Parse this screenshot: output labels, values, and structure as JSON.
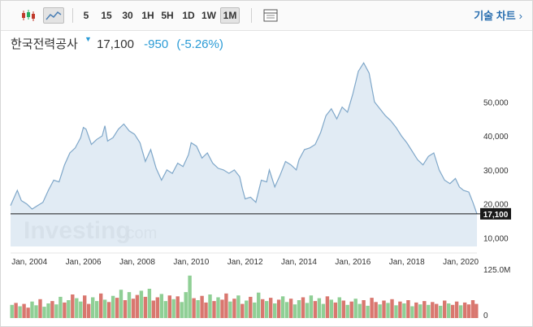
{
  "toolbar": {
    "candle_icon": "candlestick-icon",
    "area_icon": "area-chart-icon",
    "ranges": [
      "5",
      "15",
      "30",
      "1H",
      "5H",
      "1D",
      "1W",
      "1M"
    ],
    "selected_range": "1M",
    "table_icon": "table-view-icon",
    "tech_chart_label": "기술 차트",
    "tech_chart_arrow": "›"
  },
  "header": {
    "name": "한국전력공사",
    "price": "17,100",
    "change": "-950",
    "change_pct": "(-5.26%)",
    "down_color": "#2a9bd6"
  },
  "watermark": {
    "brand": "Investing",
    "suffix": ".com"
  },
  "chart_data": {
    "type": "area",
    "x_tick_labels": [
      "Jan, 2004",
      "Jan, 2006",
      "Jan, 2008",
      "Jan, 2010",
      "Jan, 2012",
      "Jan, 2014",
      "Jan, 2016",
      "Jan, 2018",
      "Jan, 2020"
    ],
    "y_tick_labels": [
      "50,000",
      "40,000",
      "30,000",
      "20,000",
      "10,000"
    ],
    "y_ticks": [
      50000,
      40000,
      30000,
      20000,
      10000
    ],
    "xlim": [
      2003.3,
      2020.6
    ],
    "ylim": [
      7500,
      63000
    ],
    "last_price_label": "17,100",
    "last_price": 17100,
    "series": [
      {
        "points": [
          [
            2003.3,
            19500
          ],
          [
            2003.55,
            24000
          ],
          [
            2003.7,
            21000
          ],
          [
            2003.9,
            20000
          ],
          [
            2004.1,
            18500
          ],
          [
            2004.3,
            19500
          ],
          [
            2004.5,
            20500
          ],
          [
            2004.7,
            24000
          ],
          [
            2004.9,
            27000
          ],
          [
            2005.1,
            26500
          ],
          [
            2005.3,
            31500
          ],
          [
            2005.5,
            35000
          ],
          [
            2005.7,
            36500
          ],
          [
            2005.9,
            39500
          ],
          [
            2006.0,
            42500
          ],
          [
            2006.1,
            42000
          ],
          [
            2006.3,
            37500
          ],
          [
            2006.5,
            39000
          ],
          [
            2006.7,
            40000
          ],
          [
            2006.8,
            43000
          ],
          [
            2006.9,
            38500
          ],
          [
            2007.1,
            39500
          ],
          [
            2007.3,
            42000
          ],
          [
            2007.5,
            43500
          ],
          [
            2007.7,
            41500
          ],
          [
            2007.9,
            40500
          ],
          [
            2008.1,
            38000
          ],
          [
            2008.3,
            32500
          ],
          [
            2008.5,
            36000
          ],
          [
            2008.7,
            30500
          ],
          [
            2008.9,
            27000
          ],
          [
            2009.1,
            30000
          ],
          [
            2009.3,
            29000
          ],
          [
            2009.5,
            32000
          ],
          [
            2009.7,
            31000
          ],
          [
            2009.9,
            34500
          ],
          [
            2010.0,
            38000
          ],
          [
            2010.2,
            37000
          ],
          [
            2010.4,
            33500
          ],
          [
            2010.6,
            35000
          ],
          [
            2010.8,
            32000
          ],
          [
            2011.0,
            30500
          ],
          [
            2011.2,
            30000
          ],
          [
            2011.4,
            29000
          ],
          [
            2011.6,
            30000
          ],
          [
            2011.8,
            28000
          ],
          [
            2011.9,
            24500
          ],
          [
            2012.0,
            21500
          ],
          [
            2012.2,
            22000
          ],
          [
            2012.4,
            20500
          ],
          [
            2012.6,
            27000
          ],
          [
            2012.8,
            26500
          ],
          [
            2012.9,
            30000
          ],
          [
            2013.1,
            25000
          ],
          [
            2013.3,
            28500
          ],
          [
            2013.5,
            32500
          ],
          [
            2013.7,
            31500
          ],
          [
            2013.9,
            30000
          ],
          [
            2014.0,
            33000
          ],
          [
            2014.2,
            36000
          ],
          [
            2014.4,
            36500
          ],
          [
            2014.6,
            37500
          ],
          [
            2014.8,
            41000
          ],
          [
            2015.0,
            46000
          ],
          [
            2015.2,
            48000
          ],
          [
            2015.4,
            45000
          ],
          [
            2015.6,
            48500
          ],
          [
            2015.8,
            47000
          ],
          [
            2016.0,
            52500
          ],
          [
            2016.2,
            59000
          ],
          [
            2016.4,
            61500
          ],
          [
            2016.6,
            58500
          ],
          [
            2016.8,
            50000
          ],
          [
            2017.0,
            48000
          ],
          [
            2017.2,
            46000
          ],
          [
            2017.4,
            44500
          ],
          [
            2017.6,
            42500
          ],
          [
            2017.8,
            40000
          ],
          [
            2018.0,
            38000
          ],
          [
            2018.2,
            35500
          ],
          [
            2018.4,
            33000
          ],
          [
            2018.6,
            31500
          ],
          [
            2018.8,
            34000
          ],
          [
            2019.0,
            35000
          ],
          [
            2019.2,
            30000
          ],
          [
            2019.4,
            27000
          ],
          [
            2019.6,
            26000
          ],
          [
            2019.8,
            27500
          ],
          [
            2019.95,
            25000
          ],
          [
            2020.1,
            24000
          ],
          [
            2020.3,
            23500
          ],
          [
            2020.45,
            20500
          ],
          [
            2020.6,
            17100
          ]
        ]
      }
    ],
    "volume": {
      "y_tick_labels": [
        "125.0M",
        "0"
      ],
      "ylim": [
        0,
        125000000
      ],
      "bars": [
        [
          2003.35,
          28,
          "g"
        ],
        [
          2003.5,
          32,
          "r"
        ],
        [
          2003.65,
          25,
          "g"
        ],
        [
          2003.8,
          30,
          "r"
        ],
        [
          2003.95,
          22,
          "r"
        ],
        [
          2004.1,
          35,
          "g"
        ],
        [
          2004.25,
          27,
          "g"
        ],
        [
          2004.4,
          40,
          "r"
        ],
        [
          2004.55,
          24,
          "g"
        ],
        [
          2004.7,
          31,
          "g"
        ],
        [
          2004.85,
          36,
          "r"
        ],
        [
          2005.0,
          29,
          "g"
        ],
        [
          2005.15,
          45,
          "g"
        ],
        [
          2005.3,
          33,
          "r"
        ],
        [
          2005.45,
          38,
          "g"
        ],
        [
          2005.6,
          50,
          "r"
        ],
        [
          2005.75,
          42,
          "g"
        ],
        [
          2005.9,
          35,
          "g"
        ],
        [
          2006.05,
          48,
          "r"
        ],
        [
          2006.2,
          30,
          "r"
        ],
        [
          2006.35,
          44,
          "g"
        ],
        [
          2006.5,
          36,
          "g"
        ],
        [
          2006.65,
          52,
          "r"
        ],
        [
          2006.8,
          39,
          "g"
        ],
        [
          2006.95,
          34,
          "r"
        ],
        [
          2007.1,
          47,
          "g"
        ],
        [
          2007.25,
          43,
          "r"
        ],
        [
          2007.4,
          60,
          "g"
        ],
        [
          2007.55,
          38,
          "r"
        ],
        [
          2007.7,
          55,
          "g"
        ],
        [
          2007.85,
          41,
          "r"
        ],
        [
          2008.0,
          49,
          "r"
        ],
        [
          2008.15,
          58,
          "g"
        ],
        [
          2008.3,
          45,
          "r"
        ],
        [
          2008.45,
          62,
          "g"
        ],
        [
          2008.6,
          37,
          "r"
        ],
        [
          2008.75,
          44,
          "r"
        ],
        [
          2008.9,
          51,
          "g"
        ],
        [
          2009.05,
          36,
          "g"
        ],
        [
          2009.2,
          48,
          "r"
        ],
        [
          2009.35,
          40,
          "g"
        ],
        [
          2009.5,
          46,
          "r"
        ],
        [
          2009.65,
          34,
          "g"
        ],
        [
          2009.8,
          55,
          "g"
        ],
        [
          2009.95,
          90,
          "g"
        ],
        [
          2010.1,
          42,
          "r"
        ],
        [
          2010.25,
          38,
          "g"
        ],
        [
          2010.4,
          47,
          "r"
        ],
        [
          2010.55,
          33,
          "r"
        ],
        [
          2010.7,
          50,
          "g"
        ],
        [
          2010.85,
          36,
          "r"
        ],
        [
          2011.0,
          44,
          "g"
        ],
        [
          2011.15,
          39,
          "r"
        ],
        [
          2011.3,
          52,
          "r"
        ],
        [
          2011.45,
          35,
          "g"
        ],
        [
          2011.6,
          41,
          "r"
        ],
        [
          2011.75,
          48,
          "g"
        ],
        [
          2011.9,
          30,
          "r"
        ],
        [
          2012.05,
          37,
          "g"
        ],
        [
          2012.2,
          45,
          "r"
        ],
        [
          2012.35,
          33,
          "g"
        ],
        [
          2012.5,
          54,
          "g"
        ],
        [
          2012.65,
          40,
          "r"
        ],
        [
          2012.8,
          36,
          "g"
        ],
        [
          2012.95,
          43,
          "r"
        ],
        [
          2013.1,
          31,
          "g"
        ],
        [
          2013.25,
          39,
          "r"
        ],
        [
          2013.4,
          46,
          "g"
        ],
        [
          2013.55,
          34,
          "g"
        ],
        [
          2013.7,
          41,
          "r"
        ],
        [
          2013.85,
          29,
          "g"
        ],
        [
          2014.0,
          38,
          "g"
        ],
        [
          2014.15,
          44,
          "r"
        ],
        [
          2014.3,
          32,
          "g"
        ],
        [
          2014.45,
          48,
          "g"
        ],
        [
          2014.6,
          36,
          "r"
        ],
        [
          2014.75,
          42,
          "g"
        ],
        [
          2014.9,
          30,
          "g"
        ],
        [
          2015.05,
          46,
          "r"
        ],
        [
          2015.2,
          39,
          "g"
        ],
        [
          2015.35,
          33,
          "r"
        ],
        [
          2015.5,
          44,
          "g"
        ],
        [
          2015.65,
          37,
          "r"
        ],
        [
          2015.8,
          28,
          "g"
        ],
        [
          2015.95,
          35,
          "r"
        ],
        [
          2016.1,
          41,
          "g"
        ],
        [
          2016.25,
          30,
          "g"
        ],
        [
          2016.4,
          38,
          "r"
        ],
        [
          2016.55,
          26,
          "g"
        ],
        [
          2016.7,
          43,
          "r"
        ],
        [
          2016.85,
          34,
          "r"
        ],
        [
          2017.0,
          29,
          "g"
        ],
        [
          2017.15,
          37,
          "r"
        ],
        [
          2017.3,
          32,
          "g"
        ],
        [
          2017.45,
          40,
          "r"
        ],
        [
          2017.6,
          27,
          "g"
        ],
        [
          2017.75,
          35,
          "r"
        ],
        [
          2017.9,
          31,
          "g"
        ],
        [
          2018.05,
          38,
          "r"
        ],
        [
          2018.2,
          25,
          "g"
        ],
        [
          2018.35,
          33,
          "r"
        ],
        [
          2018.5,
          29,
          "g"
        ],
        [
          2018.65,
          36,
          "r"
        ],
        [
          2018.8,
          28,
          "g"
        ],
        [
          2018.95,
          34,
          "r"
        ],
        [
          2019.1,
          30,
          "r"
        ],
        [
          2019.25,
          26,
          "g"
        ],
        [
          2019.4,
          37,
          "r"
        ],
        [
          2019.55,
          31,
          "g"
        ],
        [
          2019.7,
          28,
          "r"
        ],
        [
          2019.85,
          35,
          "r"
        ],
        [
          2020.0,
          27,
          "g"
        ],
        [
          2020.15,
          33,
          "r"
        ],
        [
          2020.3,
          29,
          "r"
        ],
        [
          2020.45,
          38,
          "r"
        ],
        [
          2020.58,
          30,
          "r"
        ]
      ]
    },
    "colors": {
      "line": "#7fa7c9",
      "fill": "#dce8f2",
      "price_line": "#1a1a1a",
      "vol_up": "#8fcf95",
      "vol_down": "#d9776f"
    }
  }
}
